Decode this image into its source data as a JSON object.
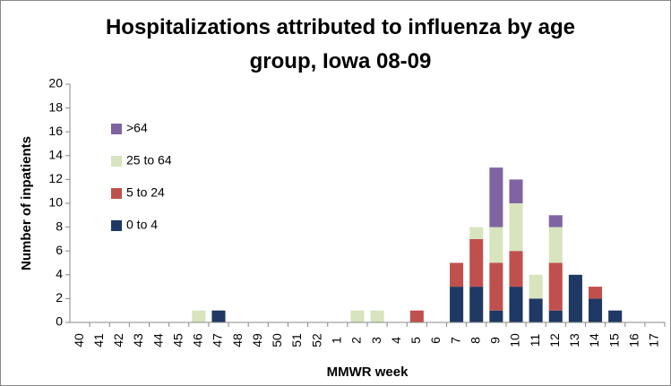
{
  "chart_data": {
    "type": "stacked_bar",
    "title": "Hospitalizations attributed to influenza by age group, Iowa 08-09",
    "x_label": "MMWR week",
    "y_label": "Number of inpatients",
    "categories": [
      "40",
      "41",
      "42",
      "43",
      "44",
      "45",
      "46",
      "47",
      "48",
      "49",
      "50",
      "51",
      "52",
      "1",
      "2",
      "3",
      "4",
      "5",
      "6",
      "7",
      "8",
      "9",
      "10",
      "11",
      "12",
      "13",
      "14",
      "15",
      "16",
      "17"
    ],
    "series": [
      {
        "name": "0 to 4",
        "color": "#1f3864",
        "values": [
          0,
          0,
          0,
          0,
          0,
          0,
          0,
          1,
          0,
          0,
          0,
          0,
          0,
          0,
          0,
          0,
          0,
          0,
          0,
          3,
          3,
          1,
          3,
          2,
          1,
          4,
          2,
          1,
          0,
          0
        ]
      },
      {
        "name": "5 to 24",
        "color": "#c0504d",
        "values": [
          0,
          0,
          0,
          0,
          0,
          0,
          0,
          0,
          0,
          0,
          0,
          0,
          0,
          0,
          0,
          0,
          0,
          1,
          0,
          2,
          4,
          4,
          3,
          0,
          4,
          0,
          1,
          0,
          0,
          0
        ]
      },
      {
        "name": "25 to 64",
        "color": "#d7e4bd",
        "values": [
          0,
          0,
          0,
          0,
          0,
          0,
          1,
          0,
          0,
          0,
          0,
          0,
          0,
          0,
          1,
          1,
          0,
          0,
          0,
          0,
          1,
          3,
          4,
          2,
          3,
          0,
          0,
          0,
          0,
          0
        ]
      },
      {
        "name": ">64",
        "color": "#8064a2",
        "values": [
          0,
          0,
          0,
          0,
          0,
          0,
          0,
          0,
          0,
          0,
          0,
          0,
          0,
          0,
          0,
          0,
          0,
          0,
          0,
          0,
          0,
          5,
          2,
          0,
          1,
          0,
          0,
          0,
          0,
          0
        ]
      }
    ],
    "ylim": [
      0,
      20
    ],
    "yticks": [
      0,
      2,
      4,
      6,
      8,
      10,
      12,
      14,
      16,
      18,
      20
    ],
    "grid": false,
    "legend": "top-left"
  }
}
